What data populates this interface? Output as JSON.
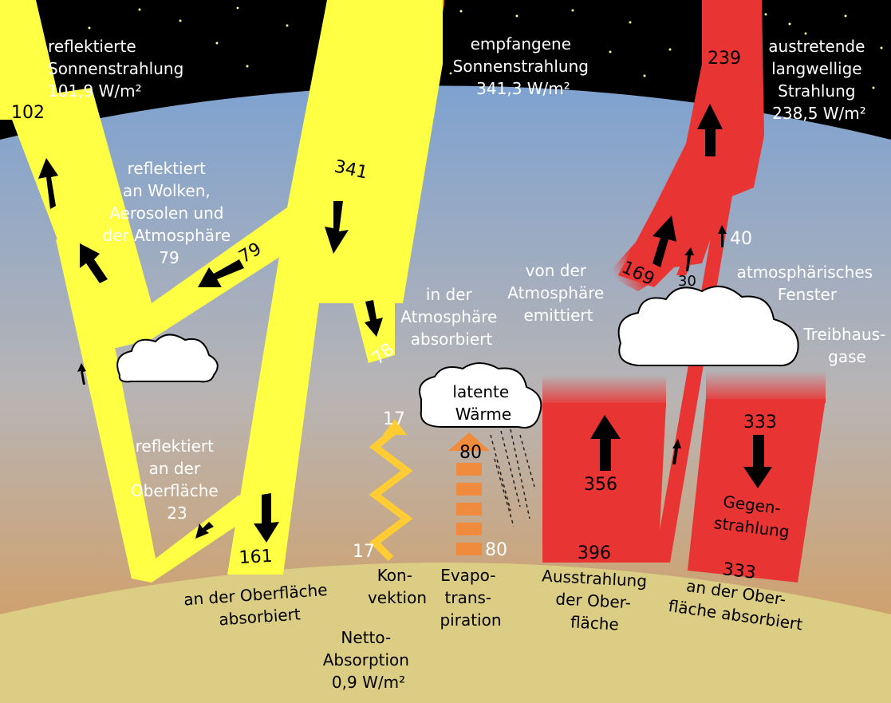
{
  "labels": {
    "reflected_solar": [
      "reflektierte",
      "Sonnenstrahlung",
      "101,9 W/m²"
    ],
    "incoming_solar": [
      "empfangene",
      "Sonnenstrahlung",
      "341,3 W/m²"
    ],
    "outgoing_longwave": [
      "austretende",
      "langwellige",
      "Strahlung",
      "238,5 W/m²"
    ],
    "reflected_clouds": [
      "reflektiert",
      "an Wolken,",
      "Aerosolen und",
      "der Atmosphäre",
      "79"
    ],
    "absorbed_atmosphere": [
      "in der",
      "Atmosphäre",
      "absorbiert"
    ],
    "emitted_atmosphere": [
      "von der",
      "Atmosphäre",
      "emittiert"
    ],
    "atmospheric_window": [
      "atmosphärisches",
      "Fenster"
    ],
    "greenhouse_gases": [
      "Treibhaus-",
      "gase"
    ],
    "reflected_surface": [
      "reflektiert",
      "an der",
      "Oberfläche",
      "23"
    ],
    "latent_heat": [
      "latente",
      "Wärme"
    ],
    "absorbed_surface": [
      "an der Oberfläche",
      "absorbiert"
    ],
    "convection": [
      "Kon-",
      "vektion"
    ],
    "evapotranspiration": [
      "Evapo-",
      "trans-",
      "piration"
    ],
    "surface_emission": [
      "Ausstrahlung",
      "der Ober-",
      "fläche"
    ],
    "back_radiation": [
      "Gegen-",
      "strahlung"
    ],
    "back_absorbed": [
      "an der Ober-",
      "fläche absorbiert"
    ],
    "net_absorption": [
      "Netto-",
      "Absorption",
      "0,9 W/m²"
    ]
  },
  "values": {
    "reflected_total": "102",
    "incoming": "341",
    "outgoing": "239",
    "reflected_atm": "79",
    "absorbed_atm": "78",
    "surface_absorbed": "161",
    "convection_top": "17",
    "convection_bottom": "17",
    "evapo_top": "80",
    "evapo_bottom": "80",
    "surface_emission": "356",
    "surface_total": "396",
    "atm_emitted": "169",
    "cloud_emitted": "30",
    "window": "40",
    "back_top": "333",
    "back_bottom": "333"
  },
  "colors": {
    "space": "#000000",
    "sky_top": "#7ea2d0",
    "sky_bottom": "#d99a54",
    "ground": "#dccd84",
    "solar": "#ffff44",
    "infrared": "#e93434",
    "convection": "#ffcc33",
    "latent": "#f08a3c",
    "cloud": "#ffffff"
  }
}
